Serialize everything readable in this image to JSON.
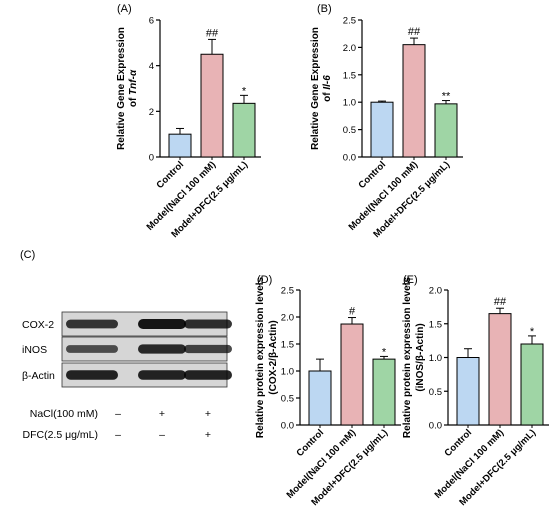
{
  "colors": {
    "control": "#bcd7f2",
    "model": "#e8b3b5",
    "treatment": "#9fd5a5",
    "axis": "#000000"
  },
  "categories": [
    "Control",
    "Model(NaCl 100 mM)",
    "Model+DFC(2.5 μg/mL)"
  ],
  "chart_data": [
    {
      "type": "bar",
      "panel": "(A)",
      "ylabel_parts": [
        "Relative Gene Expression",
        "of ",
        "Tnf-α"
      ],
      "ylim": [
        0,
        6
      ],
      "yticks": [
        0,
        2,
        4,
        6
      ],
      "tick_labels": [
        "0",
        "2",
        "4",
        "6"
      ],
      "categories": [
        "Control",
        "Model(NaCl 100 mM)",
        "Model+DFC(2.5 μg/mL)"
      ],
      "values": [
        1.0,
        4.5,
        2.35
      ],
      "errors": [
        0.25,
        0.65,
        0.35
      ],
      "marks": [
        "",
        "##",
        "*"
      ]
    },
    {
      "type": "bar",
      "panel": "(B)",
      "ylabel_parts": [
        "Relative Gene Expression",
        "of ",
        "Il-6"
      ],
      "ylim": [
        0,
        2.5
      ],
      "yticks": [
        0,
        0.5,
        1.0,
        1.5,
        2.0,
        2.5
      ],
      "tick_labels": [
        "0.0",
        "0.5",
        "1.0",
        "1.5",
        "2.0",
        "2.5"
      ],
      "categories": [
        "Control",
        "Model(NaCl 100 mM)",
        "Model+DFC(2.5 μg/mL)"
      ],
      "values": [
        1.0,
        2.05,
        0.97
      ],
      "errors": [
        0.02,
        0.12,
        0.06
      ],
      "marks": [
        "",
        "##",
        "**"
      ]
    },
    {
      "type": "bar",
      "panel": "(D)",
      "ylabel_parts": [
        "Relative protein expression levels",
        "(COX-2/β-Actin)",
        ""
      ],
      "ylim": [
        0,
        2.5
      ],
      "yticks": [
        0,
        0.5,
        1.0,
        1.5,
        2.0,
        2.5
      ],
      "tick_labels": [
        "0.0",
        "0.5",
        "1.0",
        "1.5",
        "2.0",
        "2.5"
      ],
      "categories": [
        "Control",
        "Model(NaCl 100 mM)",
        "Model+DFC(2.5 μg/mL)"
      ],
      "values": [
        1.0,
        1.87,
        1.22
      ],
      "errors": [
        0.22,
        0.12,
        0.05
      ],
      "marks": [
        "",
        "#",
        "*"
      ]
    },
    {
      "type": "bar",
      "panel": "(E)",
      "ylabel_parts": [
        "Relative protein expression levels",
        "(iNOS/β-Actin)",
        ""
      ],
      "ylim": [
        0,
        2.0
      ],
      "yticks": [
        0,
        0.5,
        1.0,
        1.5,
        2.0
      ],
      "tick_labels": [
        "0.0",
        "0.5",
        "1.0",
        "1.5",
        "2.0"
      ],
      "categories": [
        "Control",
        "Model(NaCl 100 mM)",
        "Model+DFC(2.5 μg/mL)"
      ],
      "values": [
        1.0,
        1.65,
        1.2
      ],
      "errors": [
        0.13,
        0.08,
        0.12
      ],
      "marks": [
        "",
        "##",
        "*"
      ]
    }
  ],
  "blot": {
    "panel": "(C)",
    "bands": [
      {
        "label": "COX-2",
        "intensities": [
          0.75,
          1.0,
          0.8
        ]
      },
      {
        "label": "iNOS",
        "intensities": [
          0.55,
          0.85,
          0.65
        ]
      },
      {
        "label": "β-Actin",
        "intensities": [
          0.9,
          0.9,
          0.9
        ]
      }
    ],
    "treatments": [
      {
        "label": "NaCl(100 mM)",
        "signs": [
          "–",
          "+",
          "+"
        ]
      },
      {
        "label": "DFC(2.5 μg/mL)",
        "signs": [
          "–",
          "–",
          "+"
        ]
      }
    ]
  }
}
